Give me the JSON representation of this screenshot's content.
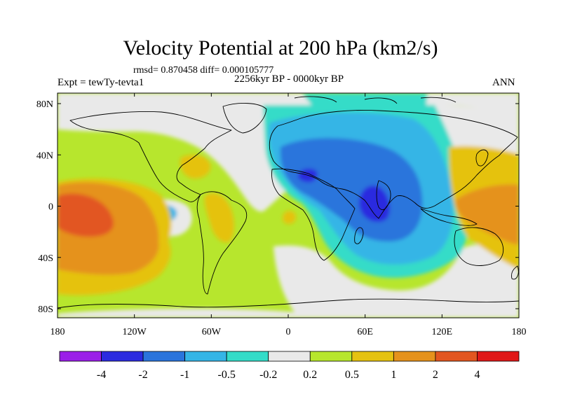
{
  "title": "Velocity Potential at 200 hPa (km2/s)",
  "stats": "rmsd= 0.870458 diff= 0.000105777",
  "left_label": "Expt = tewTy-tevta1",
  "center_label": "2256kyr BP - 0000kyr BP",
  "right_label": "ANN",
  "lat_labels": [
    "80N",
    "40N",
    "0",
    "40S",
    "80S"
  ],
  "lon_labels": [
    "180",
    "120W",
    "60W",
    "0",
    "60E",
    "120E",
    "180"
  ],
  "colorbar": {
    "colors": [
      "#9b1fe8",
      "#2b2bdf",
      "#2a74dc",
      "#35b5e6",
      "#34dcc8",
      "#e9e9e9",
      "#b7e62d",
      "#e5c211",
      "#e5921c",
      "#e25620",
      "#e01818"
    ],
    "labels": [
      "-4",
      "-2",
      "-1",
      "-0.5",
      "-0.2",
      "0.2",
      "0.5",
      "1",
      "2",
      "4"
    ]
  }
}
